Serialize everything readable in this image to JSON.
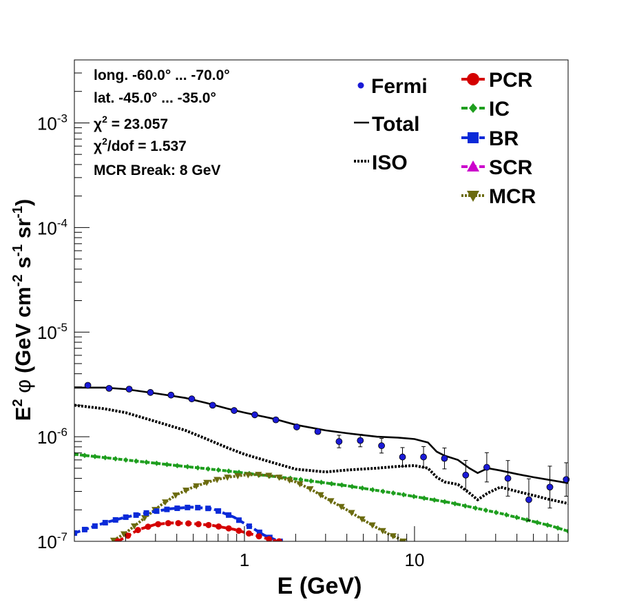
{
  "chart_data": {
    "type": "line",
    "xlabel": "E (GeV)",
    "ylabel_parts": {
      "e": "E",
      "e_sup": "2",
      "phi": "φ",
      "unit_open": " (GeV cm",
      "cm_sup": "-2",
      "s": " s",
      "s_sup": "-1",
      "sr": " sr",
      "sr_sup": "-1",
      "unit_close": ")"
    },
    "x_scale": "log",
    "y_scale": "log",
    "xlim": [
      0.1,
      80
    ],
    "ylim": [
      1e-07,
      0.004
    ],
    "x_tick_labels": [
      {
        "value": 1,
        "label": "1"
      },
      {
        "value": 10,
        "label": "10"
      }
    ],
    "y_tick_labels": [
      {
        "value": 1e-07,
        "base": "10",
        "exp": "-7"
      },
      {
        "value": 1e-06,
        "base": "10",
        "exp": "-6"
      },
      {
        "value": 1e-05,
        "base": "10",
        "exp": "-5"
      },
      {
        "value": 0.0001,
        "base": "10",
        "exp": "-4"
      },
      {
        "value": 0.001,
        "base": "10",
        "exp": "-3"
      }
    ],
    "annotations": {
      "longitude": "long. -60.0° ... -70.0°",
      "latitude": "lat. -45.0° ... -35.0°",
      "chi2_sym": "χ",
      "chi2_sup": "2",
      "chi2_rest": " = 23.057",
      "chi2dof_sym": "χ",
      "chi2dof_sup": "2",
      "chi2dof_rest": "/dof = 1.537",
      "mcr_break": "MCR Break:  8 GeV"
    },
    "legend": {
      "placement": "top-right",
      "left_entries": [
        "Fermi",
        "Total",
        "ISO"
      ],
      "right_entries": [
        "PCR",
        "IC",
        "BR",
        "SCR",
        "MCR"
      ]
    },
    "colors": {
      "Fermi": "#1a1ad6",
      "Total": "#000000",
      "ISO": "#000000",
      "PCR": "#d40000",
      "IC": "#1e9e1e",
      "BR": "#0a2ad8",
      "SCR": "#cc00cc",
      "MCR": "#6b6b0f"
    },
    "fermi": [
      {
        "x": 0.12,
        "y": 3.1e-06,
        "err": 0
      },
      {
        "x": 0.16,
        "y": 2.9e-06,
        "err": 0
      },
      {
        "x": 0.21,
        "y": 2.85e-06,
        "err": 0
      },
      {
        "x": 0.28,
        "y": 2.65e-06,
        "err": 0
      },
      {
        "x": 0.37,
        "y": 2.5e-06,
        "err": 0
      },
      {
        "x": 0.49,
        "y": 2.3e-06,
        "err": 0
      },
      {
        "x": 0.65,
        "y": 2e-06,
        "err": 0
      },
      {
        "x": 0.87,
        "y": 1.78e-06,
        "err": 0
      },
      {
        "x": 1.15,
        "y": 1.62e-06,
        "err": 0
      },
      {
        "x": 1.53,
        "y": 1.45e-06,
        "err": 0
      },
      {
        "x": 2.03,
        "y": 1.24e-06,
        "err": 0
      },
      {
        "x": 2.7,
        "y": 1.12e-06,
        "err": 0
      },
      {
        "x": 3.6,
        "y": 9e-07,
        "err": 0.06
      },
      {
        "x": 4.8,
        "y": 9.2e-07,
        "err": 0.06
      },
      {
        "x": 6.4,
        "y": 8.2e-07,
        "err": 0.07
      },
      {
        "x": 8.5,
        "y": 6.4e-07,
        "err": 0.09
      },
      {
        "x": 11.3,
        "y": 6.4e-07,
        "err": 0.1
      },
      {
        "x": 15.0,
        "y": 6.2e-07,
        "err": 0.1
      },
      {
        "x": 20.0,
        "y": 4.3e-07,
        "err": 0.14
      },
      {
        "x": 26.6,
        "y": 5.1e-07,
        "err": 0.14
      },
      {
        "x": 35.4,
        "y": 4e-07,
        "err": 0.17
      },
      {
        "x": 47.0,
        "y": 2.5e-07,
        "err": 0.2
      },
      {
        "x": 62.5,
        "y": 3.3e-07,
        "err": 0.2
      },
      {
        "x": 78.0,
        "y": 3.9e-07,
        "err": 0.16
      }
    ],
    "series": [
      {
        "name": "Total",
        "values": [
          [
            0.1,
            2.95e-06
          ],
          [
            0.15,
            2.95e-06
          ],
          [
            0.2,
            2.85e-06
          ],
          [
            0.3,
            2.6e-06
          ],
          [
            0.45,
            2.35e-06
          ],
          [
            0.6,
            2.1e-06
          ],
          [
            0.8,
            1.85e-06
          ],
          [
            1.0,
            1.7e-06
          ],
          [
            1.5,
            1.48e-06
          ],
          [
            2.0,
            1.3e-06
          ],
          [
            3.0,
            1.15e-06
          ],
          [
            4.0,
            1.08e-06
          ],
          [
            6.0,
            1e-06
          ],
          [
            8.0,
            9.8e-07
          ],
          [
            10.0,
            9.5e-07
          ],
          [
            12.0,
            8.8e-07
          ],
          [
            13.5,
            7.2e-07
          ],
          [
            15.0,
            6.6e-07
          ],
          [
            18.0,
            6e-07
          ],
          [
            21.0,
            5e-07
          ],
          [
            23.5,
            4.5e-07
          ],
          [
            27.0,
            5e-07
          ],
          [
            32.0,
            4.75e-07
          ],
          [
            40.0,
            4.4e-07
          ],
          [
            50.0,
            4.1e-07
          ],
          [
            60.0,
            3.9e-07
          ],
          [
            80.0,
            3.6e-07
          ]
        ]
      },
      {
        "name": "ISO",
        "values": [
          [
            0.1,
            2e-06
          ],
          [
            0.15,
            1.85e-06
          ],
          [
            0.2,
            1.7e-06
          ],
          [
            0.3,
            1.4e-06
          ],
          [
            0.45,
            1.15e-06
          ],
          [
            0.6,
            9.5e-07
          ],
          [
            0.8,
            7.8e-07
          ],
          [
            1.0,
            6.8e-07
          ],
          [
            1.5,
            5.6e-07
          ],
          [
            2.0,
            4.9e-07
          ],
          [
            3.0,
            4.6e-07
          ],
          [
            4.0,
            4.8e-07
          ],
          [
            6.0,
            5e-07
          ],
          [
            8.0,
            5.2e-07
          ],
          [
            10.0,
            5.3e-07
          ],
          [
            12.0,
            5e-07
          ],
          [
            13.5,
            4.1e-07
          ],
          [
            15.0,
            3.7e-07
          ],
          [
            18.0,
            3.5e-07
          ],
          [
            21.0,
            2.9e-07
          ],
          [
            23.5,
            2.5e-07
          ],
          [
            27.0,
            2.9e-07
          ],
          [
            32.0,
            3.3e-07
          ],
          [
            40.0,
            3e-07
          ],
          [
            50.0,
            2.75e-07
          ],
          [
            60.0,
            2.55e-07
          ],
          [
            80.0,
            2.3e-07
          ]
        ]
      },
      {
        "name": "IC",
        "values": [
          [
            0.1,
            6.8e-07
          ],
          [
            0.2,
            6e-07
          ],
          [
            0.4,
            5.3e-07
          ],
          [
            0.8,
            4.7e-07
          ],
          [
            1.0,
            4.5e-07
          ],
          [
            2.0,
            3.95e-07
          ],
          [
            4.0,
            3.4e-07
          ],
          [
            8.0,
            2.85e-07
          ],
          [
            16.0,
            2.35e-07
          ],
          [
            32.0,
            1.85e-07
          ],
          [
            64.0,
            1.4e-07
          ],
          [
            80.0,
            1.25e-07
          ]
        ]
      },
      {
        "name": "MCR",
        "values": [
          [
            0.17,
            1.02e-07
          ],
          [
            0.2,
            1.2e-07
          ],
          [
            0.25,
            1.6e-07
          ],
          [
            0.32,
            2.2e-07
          ],
          [
            0.4,
            2.8e-07
          ],
          [
            0.5,
            3.3e-07
          ],
          [
            0.65,
            3.8e-07
          ],
          [
            0.8,
            4.1e-07
          ],
          [
            1.0,
            4.3e-07
          ],
          [
            1.2,
            4.35e-07
          ],
          [
            1.5,
            4.2e-07
          ],
          [
            2.0,
            3.7e-07
          ],
          [
            2.5,
            3.1e-07
          ],
          [
            3.0,
            2.6e-07
          ],
          [
            4.0,
            2e-07
          ],
          [
            5.0,
            1.6e-07
          ],
          [
            6.0,
            1.35e-07
          ],
          [
            7.0,
            1.18e-07
          ],
          [
            8.0,
            1.07e-07
          ],
          [
            8.6,
            1e-07
          ]
        ]
      },
      {
        "name": "BR",
        "values": [
          [
            0.1,
            1.2e-07
          ],
          [
            0.15,
            1.5e-07
          ],
          [
            0.2,
            1.7e-07
          ],
          [
            0.28,
            1.9e-07
          ],
          [
            0.37,
            2.05e-07
          ],
          [
            0.49,
            2.12e-07
          ],
          [
            0.65,
            2.05e-07
          ],
          [
            0.87,
            1.7e-07
          ],
          [
            1.0,
            1.48e-07
          ],
          [
            1.15,
            1.3e-07
          ],
          [
            1.3,
            1.15e-07
          ],
          [
            1.53,
            1.03e-07
          ],
          [
            1.62,
            1e-07
          ]
        ]
      },
      {
        "name": "PCR",
        "values": [
          [
            0.18,
            1e-07
          ],
          [
            0.2,
            1.1e-07
          ],
          [
            0.24,
            1.3e-07
          ],
          [
            0.3,
            1.45e-07
          ],
          [
            0.37,
            1.5e-07
          ],
          [
            0.49,
            1.48e-07
          ],
          [
            0.65,
            1.42e-07
          ],
          [
            0.87,
            1.3e-07
          ],
          [
            1.0,
            1.22e-07
          ],
          [
            1.15,
            1.15e-07
          ],
          [
            1.3,
            1.08e-07
          ],
          [
            1.53,
            1.01e-07
          ],
          [
            1.6,
            1e-07
          ]
        ]
      }
    ]
  }
}
